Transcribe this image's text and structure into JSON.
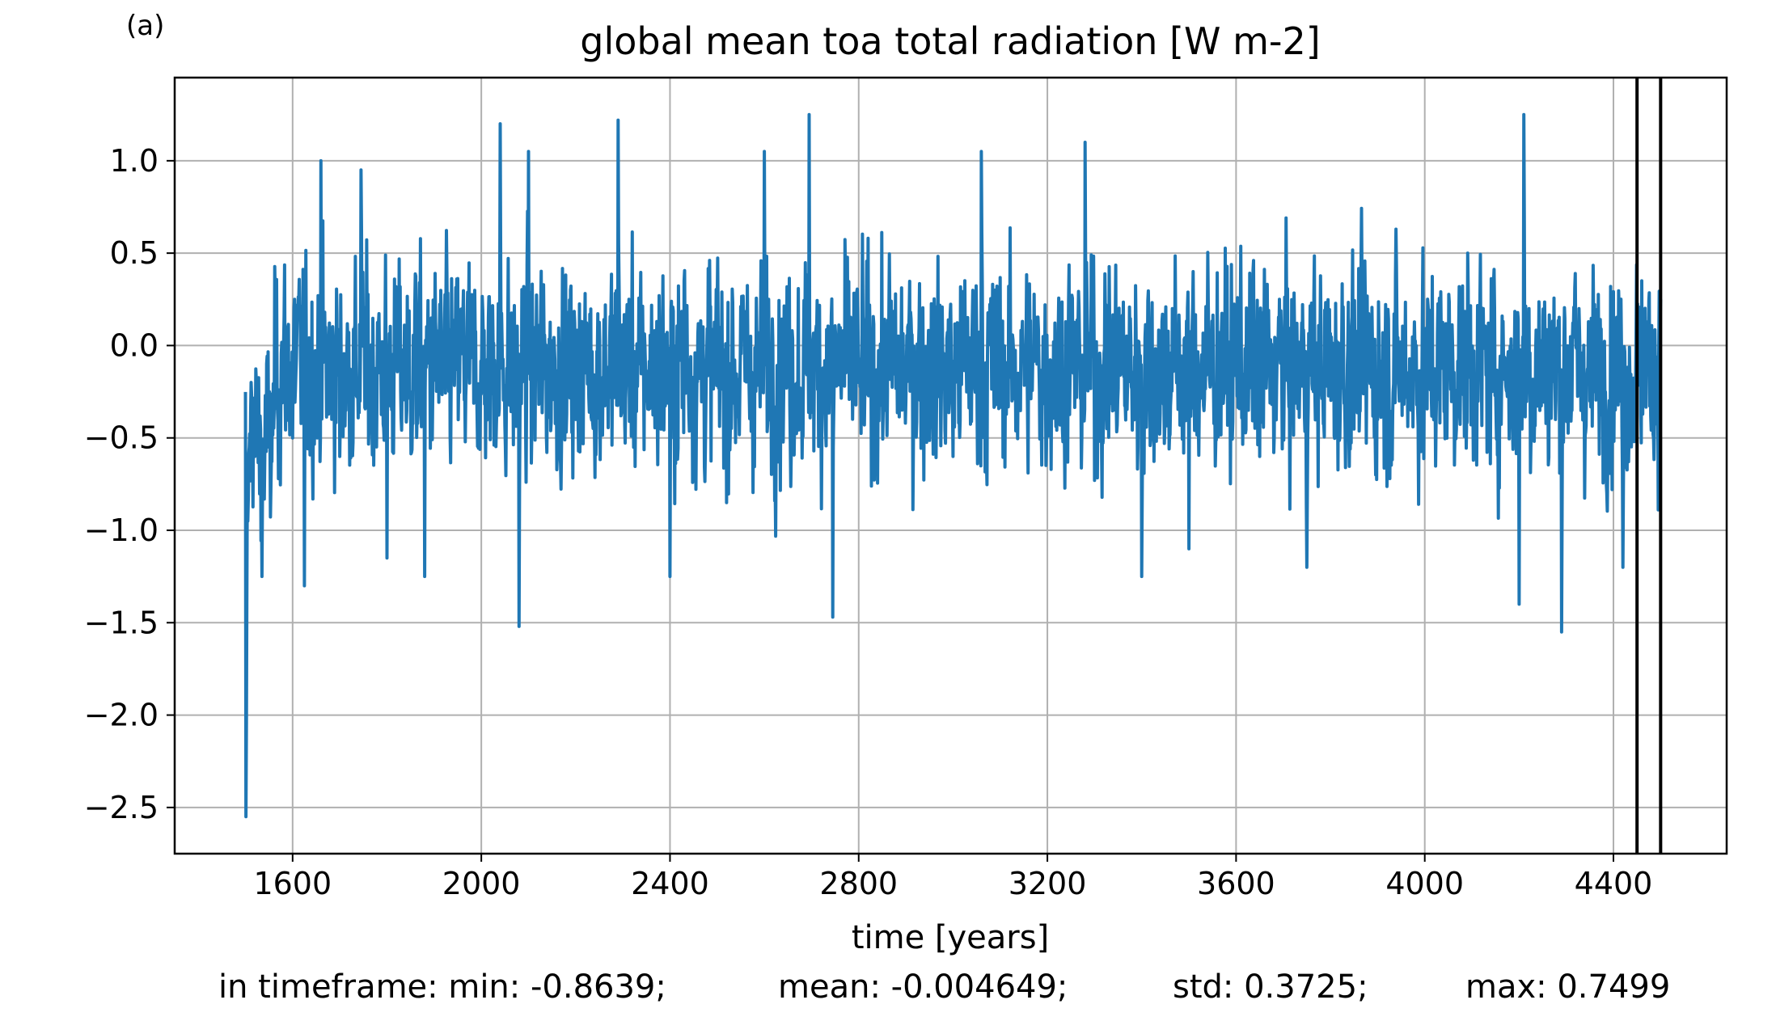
{
  "chart_data": {
    "type": "line",
    "panel_label": "(a)",
    "title": "global mean toa total radiation [W m-2]",
    "xlabel": "time [years]",
    "ylabel": "",
    "xlim": [
      1350,
      4640
    ],
    "ylim": [
      -2.75,
      1.45
    ],
    "xticks": [
      1600,
      2000,
      2400,
      2800,
      3200,
      3600,
      4000,
      4400
    ],
    "yticks": [
      -2.5,
      -2.0,
      -1.5,
      -1.0,
      -0.5,
      0.0,
      0.5,
      1.0
    ],
    "grid": true,
    "series": [
      {
        "color": "#1f77b4",
        "x_start": 1500,
        "x_end": 4500,
        "anchor_points": [
          [
            1501,
            -2.55
          ],
          [
            1502,
            -2.05
          ],
          [
            1503,
            -1.4
          ],
          [
            1505,
            -0.95
          ],
          [
            1508,
            -0.55
          ],
          [
            1512,
            -0.2
          ],
          [
            1520,
            -0.6
          ],
          [
            1535,
            -1.25
          ],
          [
            1550,
            -0.3
          ],
          [
            1575,
            -0.35
          ],
          [
            1590,
            0.1
          ],
          [
            1600,
            -0.5
          ],
          [
            1625,
            -1.3
          ],
          [
            1660,
            1.0
          ],
          [
            1700,
            -0.6
          ],
          [
            1745,
            0.95
          ],
          [
            1800,
            -1.15
          ],
          [
            1850,
            -0.25
          ],
          [
            1880,
            -1.25
          ],
          [
            1960,
            0.2
          ],
          [
            2040,
            1.2
          ],
          [
            2080,
            -1.52
          ],
          [
            2100,
            1.05
          ],
          [
            2200,
            -0.4
          ],
          [
            2290,
            1.22
          ],
          [
            2350,
            -0.3
          ],
          [
            2400,
            -1.25
          ],
          [
            2430,
            0.35
          ],
          [
            2520,
            -0.85
          ],
          [
            2600,
            1.05
          ],
          [
            2695,
            1.25
          ],
          [
            2745,
            -1.47
          ],
          [
            2800,
            -0.2
          ],
          [
            2900,
            -0.3
          ],
          [
            3000,
            -0.6
          ],
          [
            3060,
            1.05
          ],
          [
            3150,
            0.0
          ],
          [
            3280,
            1.1
          ],
          [
            3400,
            -1.25
          ],
          [
            3500,
            -1.1
          ],
          [
            3650,
            -0.6
          ],
          [
            3750,
            -1.2
          ],
          [
            3900,
            -0.4
          ],
          [
            4000,
            -0.2
          ],
          [
            4100,
            -0.1
          ],
          [
            4200,
            -1.4
          ],
          [
            4210,
            1.25
          ],
          [
            4290,
            -1.55
          ],
          [
            4350,
            -0.3
          ],
          [
            4420,
            -1.2
          ],
          [
            4460,
            0.35
          ],
          [
            4500,
            0.25
          ]
        ]
      }
    ],
    "vertical_lines": [
      4450,
      4500
    ],
    "stats": {
      "prefix": "in timeframe: min: -0.8639;",
      "mean": "mean: -0.004649;",
      "std": "std: 0.3725;",
      "max": "max: 0.7499"
    }
  }
}
